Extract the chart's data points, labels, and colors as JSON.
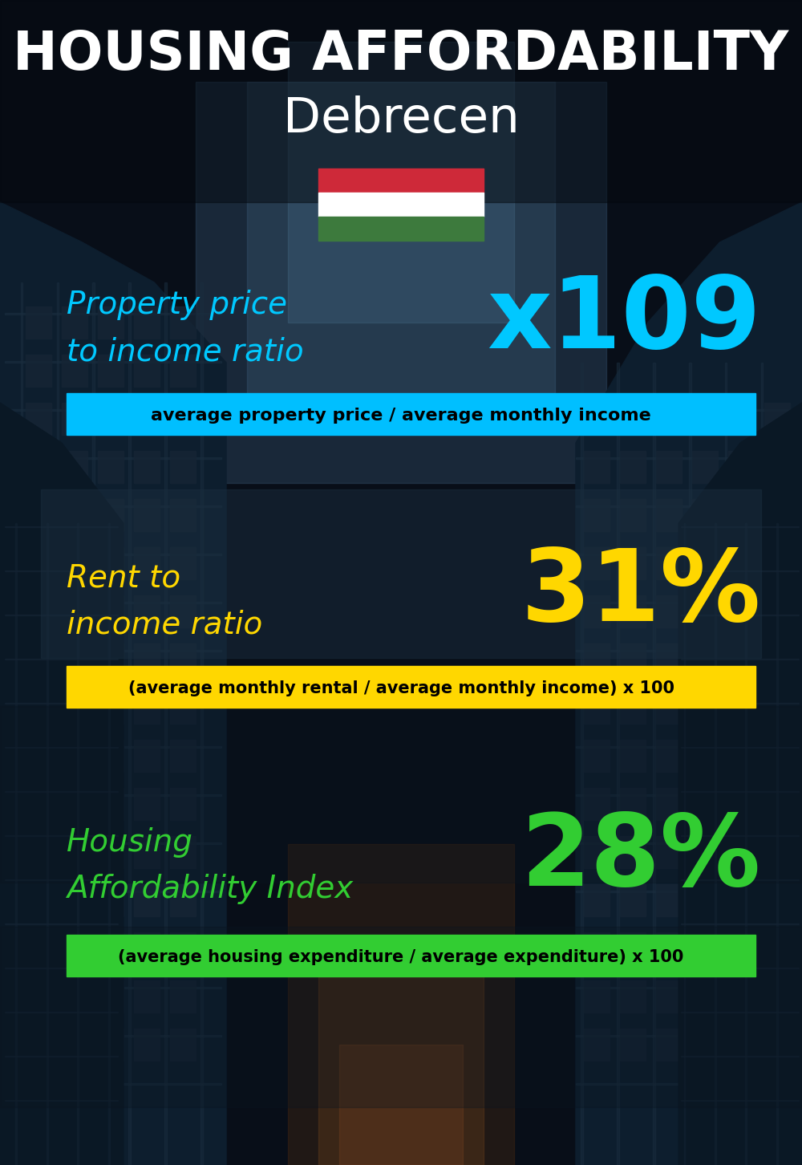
{
  "title_line1": "HOUSING AFFORDABILITY",
  "title_line2": "Debrecen",
  "bg_color": "#0a1422",
  "section1_label_line1": "Property price",
  "section1_label_line2": "to income ratio",
  "section1_value": "x109",
  "section1_label_color": "#00c8ff",
  "section1_value_color": "#00c8ff",
  "section1_sub": "average property price / average monthly income",
  "section1_sub_bg": "#00bfff",
  "section2_label_line1": "Rent to",
  "section2_label_line2": "income ratio",
  "section2_value": "31%",
  "section2_label_color": "#ffd700",
  "section2_value_color": "#ffd700",
  "section2_sub": "(average monthly rental / average monthly income) x 100",
  "section2_sub_bg": "#ffd700",
  "section3_label_line1": "Housing",
  "section3_label_line2": "Affordability Index",
  "section3_value": "28%",
  "section3_label_color": "#32cd32",
  "section3_value_color": "#32cd32",
  "section3_sub": "(average housing expenditure / average expenditure) x 100",
  "section3_sub_bg": "#32cd32",
  "flag_red": "#ce2939",
  "flag_white": "#ffffff",
  "flag_green": "#3d7a3d",
  "title_color": "#ffffff",
  "sub_text_color": "#000000"
}
